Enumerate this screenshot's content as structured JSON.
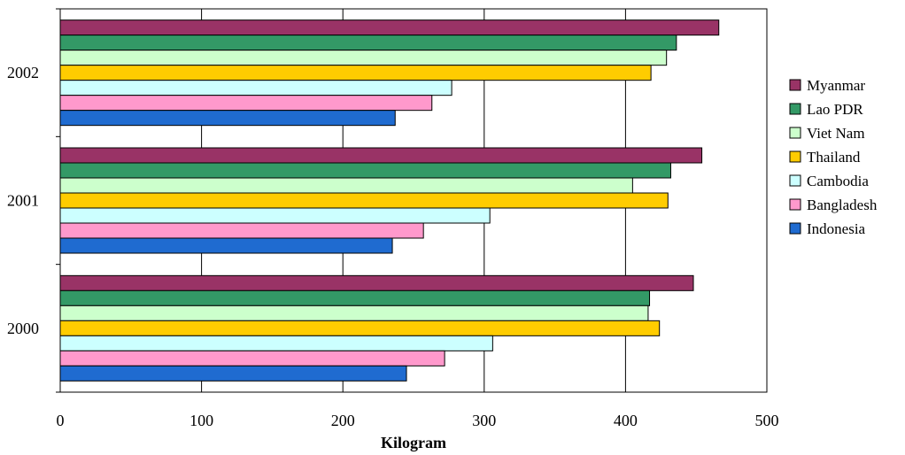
{
  "chart_data": {
    "type": "bar",
    "orientation": "horizontal",
    "categories": [
      "2000",
      "2001",
      "2002"
    ],
    "series": [
      {
        "name": "Indonesia",
        "color": "#1F6BD0",
        "values": [
          245,
          235,
          237
        ]
      },
      {
        "name": "Bangladesh",
        "color": "#FF99CC",
        "values": [
          272,
          257,
          263
        ]
      },
      {
        "name": "Cambodia",
        "color": "#CCFFFF",
        "values": [
          306,
          304,
          277
        ]
      },
      {
        "name": "Thailand",
        "color": "#FFCC00",
        "values": [
          424,
          430,
          418
        ]
      },
      {
        "name": "Viet Nam",
        "color": "#CCFFCC",
        "values": [
          416,
          405,
          429
        ]
      },
      {
        "name": "Lao PDR",
        "color": "#339966",
        "values": [
          417,
          432,
          436
        ]
      },
      {
        "name": "Myanmar",
        "color": "#993366",
        "values": [
          448,
          454,
          466
        ]
      }
    ],
    "xlabel": "Kilogram",
    "ylabel": "",
    "xlim": [
      0,
      500
    ],
    "xticks": [
      "0",
      "100",
      "200",
      "300",
      "400",
      "500"
    ],
    "grid": "vertical",
    "legend_position": "right",
    "legend_order": [
      "Myanmar",
      "Lao PDR",
      "Viet Nam",
      "Thailand",
      "Cambodia",
      "Bangladesh",
      "Indonesia"
    ]
  }
}
